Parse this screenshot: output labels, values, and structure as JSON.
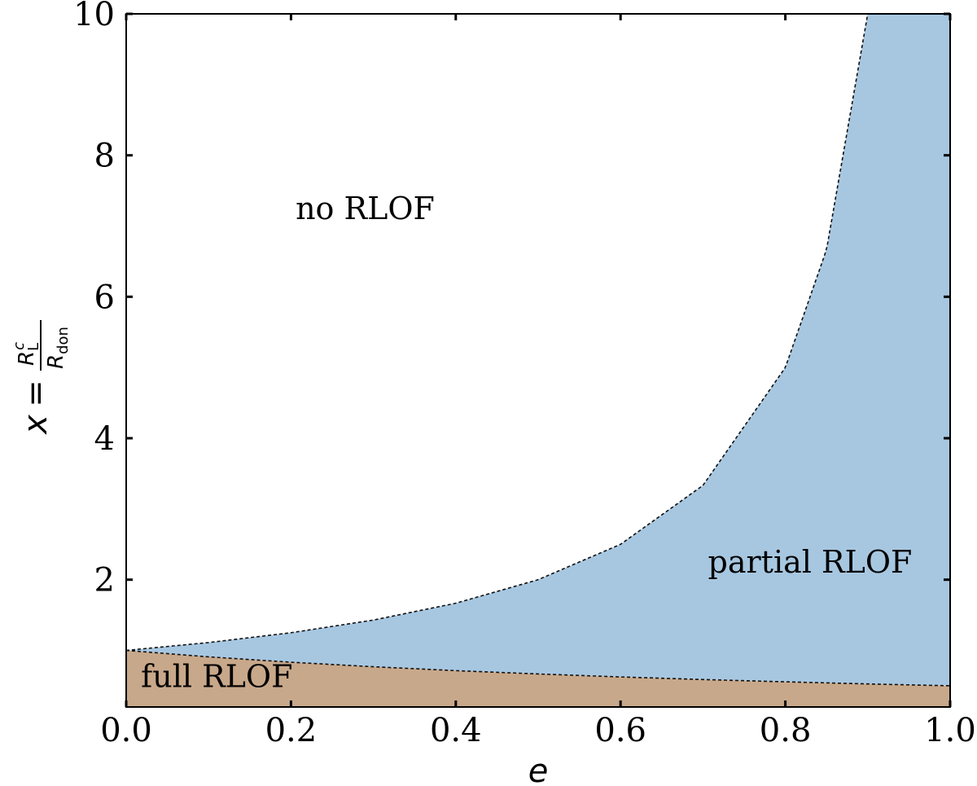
{
  "chart_data": {
    "type": "area",
    "title": "",
    "xlabel": "e",
    "ylabel": {
      "lhs": "x",
      "eq": "=",
      "num_main": "R",
      "num_sub": "L",
      "num_sup": "c",
      "den_main": "R",
      "den_sub": "don"
    },
    "xlim": [
      0.0,
      1.0
    ],
    "ylim": [
      0.2,
      10.0
    ],
    "x_ticks": [
      0.0,
      0.2,
      0.4,
      0.6,
      0.8,
      1.0
    ],
    "x_tick_labels": [
      "0.0",
      "0.2",
      "0.4",
      "0.6",
      "0.8",
      "1.0"
    ],
    "y_ticks": [
      2,
      4,
      6,
      8,
      10
    ],
    "y_tick_labels": [
      "2",
      "4",
      "6",
      "8",
      "10"
    ],
    "grid": false,
    "series": [
      {
        "name": "",
        "description_curve": "lower boundary",
        "x": [
          0.0,
          0.1,
          0.2,
          0.3,
          0.4,
          0.5,
          0.6,
          0.7,
          0.8,
          0.9,
          1.0
        ],
        "y": [
          1.0,
          0.909,
          0.833,
          0.769,
          0.714,
          0.667,
          0.625,
          0.588,
          0.556,
          0.526,
          0.5
        ],
        "line_style": "dashed",
        "fill_below_color": "#c8a88a"
      },
      {
        "name": "",
        "description_curve": "upper boundary",
        "x": [
          0.0,
          0.1,
          0.2,
          0.3,
          0.4,
          0.5,
          0.6,
          0.7,
          0.8,
          0.85,
          0.9,
          0.905
        ],
        "y": [
          1.0,
          1.111,
          1.25,
          1.429,
          1.667,
          2.0,
          2.5,
          3.333,
          5.0,
          6.667,
          10.0,
          10.53
        ],
        "line_style": "dashed",
        "fill_between_color": "#a7c7e1"
      }
    ],
    "annotations": [
      {
        "text": "no RLOF",
        "x": 0.29,
        "y": 7.1
      },
      {
        "text": "partial RLOF",
        "x": 0.83,
        "y": 2.1
      },
      {
        "text": "full RLOF",
        "x": 0.11,
        "y": 0.48
      }
    ],
    "colors": {
      "partial_fill": "#a7c7e1",
      "full_fill": "#c8a88a",
      "axis": "#000000"
    }
  }
}
